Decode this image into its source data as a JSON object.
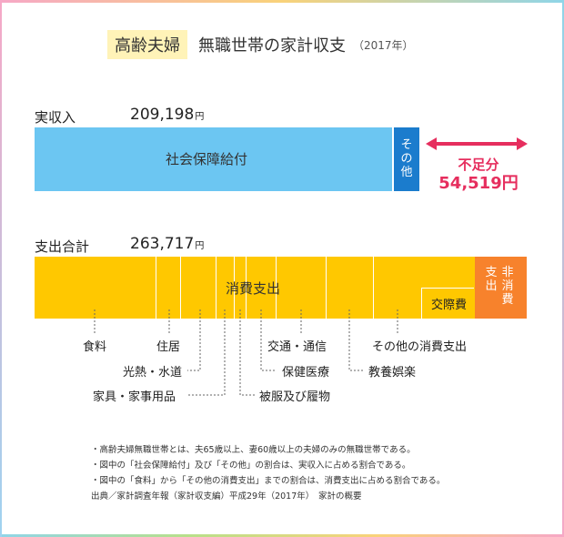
{
  "header": {
    "tag": "高齢夫婦",
    "title": "無職世帯の家計収支",
    "year": "（2017年）"
  },
  "chart_data": {
    "type": "bar",
    "income": {
      "label": "実収入",
      "total": 209198,
      "total_text": "209,198",
      "unit": "円",
      "segments": [
        {
          "name": "社会保障給付",
          "color": "#6cc6f2"
        },
        {
          "name": "その他",
          "color": "#1b7ccd"
        }
      ]
    },
    "deficit": {
      "label": "不足分",
      "value": 54519,
      "value_text": "54,519円",
      "color": "#e62e5e"
    },
    "expenditure": {
      "label": "支出合計",
      "total": 263717,
      "total_text": "263,717",
      "unit": "円",
      "consumption_label": "消費支出",
      "non_consumption_label": "非消費支出",
      "consumption_color": "#ffc800",
      "non_consumption_color": "#f7822c",
      "categories": [
        "食料",
        "住居",
        "光熱・水道",
        "家具・家事用品",
        "被服及び履物",
        "保健医療",
        "交通・通信",
        "教養娯楽",
        "その他の消費支出",
        "交際費"
      ]
    }
  },
  "notes": [
    "・高齢夫婦無職世帯とは、夫65歳以上、妻60歳以上の夫婦のみの無職世帯である。",
    "・図中の「社会保障給付」及び「その他」の割合は、実収入に占める割合である。",
    "・図中の「食料」から「その他の消費支出」までの割合は、消費支出に占める割合である。",
    "出典／家計調査年報（家計収支編）平成29年（2017年）　家計の概要"
  ]
}
